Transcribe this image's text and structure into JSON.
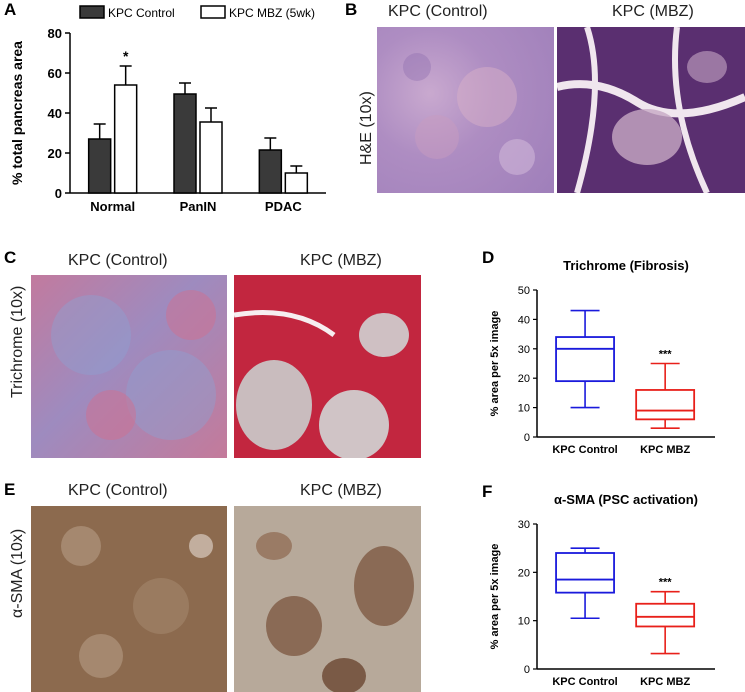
{
  "panels": {
    "A": {
      "label": "A"
    },
    "B": {
      "label": "B",
      "col1": "KPC (Control)",
      "col2": "KPC (MBZ)",
      "row": "H&E (10x)"
    },
    "C": {
      "label": "C",
      "col1": "KPC (Control)",
      "col2": "KPC (MBZ)",
      "row": "Trichrome (10x)"
    },
    "D": {
      "label": "D"
    },
    "E": {
      "label": "E",
      "col1": "KPC (Control)",
      "col2": "KPC (MBZ)",
      "row": "α-SMA (10x)"
    },
    "F": {
      "label": "F"
    }
  },
  "colors": {
    "control_bar": "#3a3a3a",
    "mbz_bar": "#ffffff",
    "control_box": "#1a1adc",
    "mbz_box": "#e8201a",
    "he_control": "#b79ac6",
    "he_mbz": "#5a2f70",
    "tri_control": "#b784ad",
    "tri_mbz": "#c2263f",
    "sma_control": "#8c6a4e",
    "sma_mbz": "#b7a99a"
  },
  "chart_data": [
    {
      "type": "bar",
      "panel": "A",
      "categories": [
        "Normal",
        "PanIN",
        "PDAC"
      ],
      "series": [
        {
          "name": "KPC Control",
          "values": [
            27,
            49.5,
            21.5
          ],
          "errors": [
            7.5,
            5.5,
            6
          ]
        },
        {
          "name": "KPC MBZ (5wk)",
          "values": [
            54,
            35.5,
            10
          ],
          "errors": [
            9.5,
            7,
            3.5
          ]
        }
      ],
      "annotations": [
        {
          "category": "Normal",
          "series": "KPC MBZ (5wk)",
          "text": "*"
        }
      ],
      "ylabel": "% total pancreas area",
      "ylim": [
        0,
        80
      ],
      "yticks": [
        0,
        20,
        40,
        60,
        80
      ],
      "legend": "top"
    },
    {
      "type": "box",
      "panel": "D",
      "title": "Trichrome (Fibrosis)",
      "ylabel": "% area per 5x image",
      "categories": [
        "KPC Control",
        "KPC MBZ"
      ],
      "boxes": [
        {
          "min": 10,
          "q1": 19,
          "median": 30,
          "q3": 34,
          "max": 43
        },
        {
          "min": 3,
          "q1": 6,
          "median": 9,
          "q3": 16,
          "max": 25
        }
      ],
      "annotations": [
        {
          "category": "KPC MBZ",
          "text": "***"
        }
      ],
      "ylim": [
        0,
        50
      ],
      "yticks": [
        0,
        10,
        20,
        30,
        40,
        50
      ]
    },
    {
      "type": "box",
      "panel": "F",
      "title": "α-SMA (PSC activation)",
      "ylabel": "% area per 5x image",
      "categories": [
        "KPC Control",
        "KPC MBZ"
      ],
      "boxes": [
        {
          "min": 10.5,
          "q1": 15.8,
          "median": 18.5,
          "q3": 24,
          "max": 25
        },
        {
          "min": 3.2,
          "q1": 8.8,
          "median": 10.8,
          "q3": 13.5,
          "max": 16
        }
      ],
      "annotations": [
        {
          "category": "KPC MBZ",
          "text": "***"
        }
      ],
      "ylim": [
        0,
        30
      ],
      "yticks": [
        0,
        10,
        20,
        30
      ]
    }
  ]
}
